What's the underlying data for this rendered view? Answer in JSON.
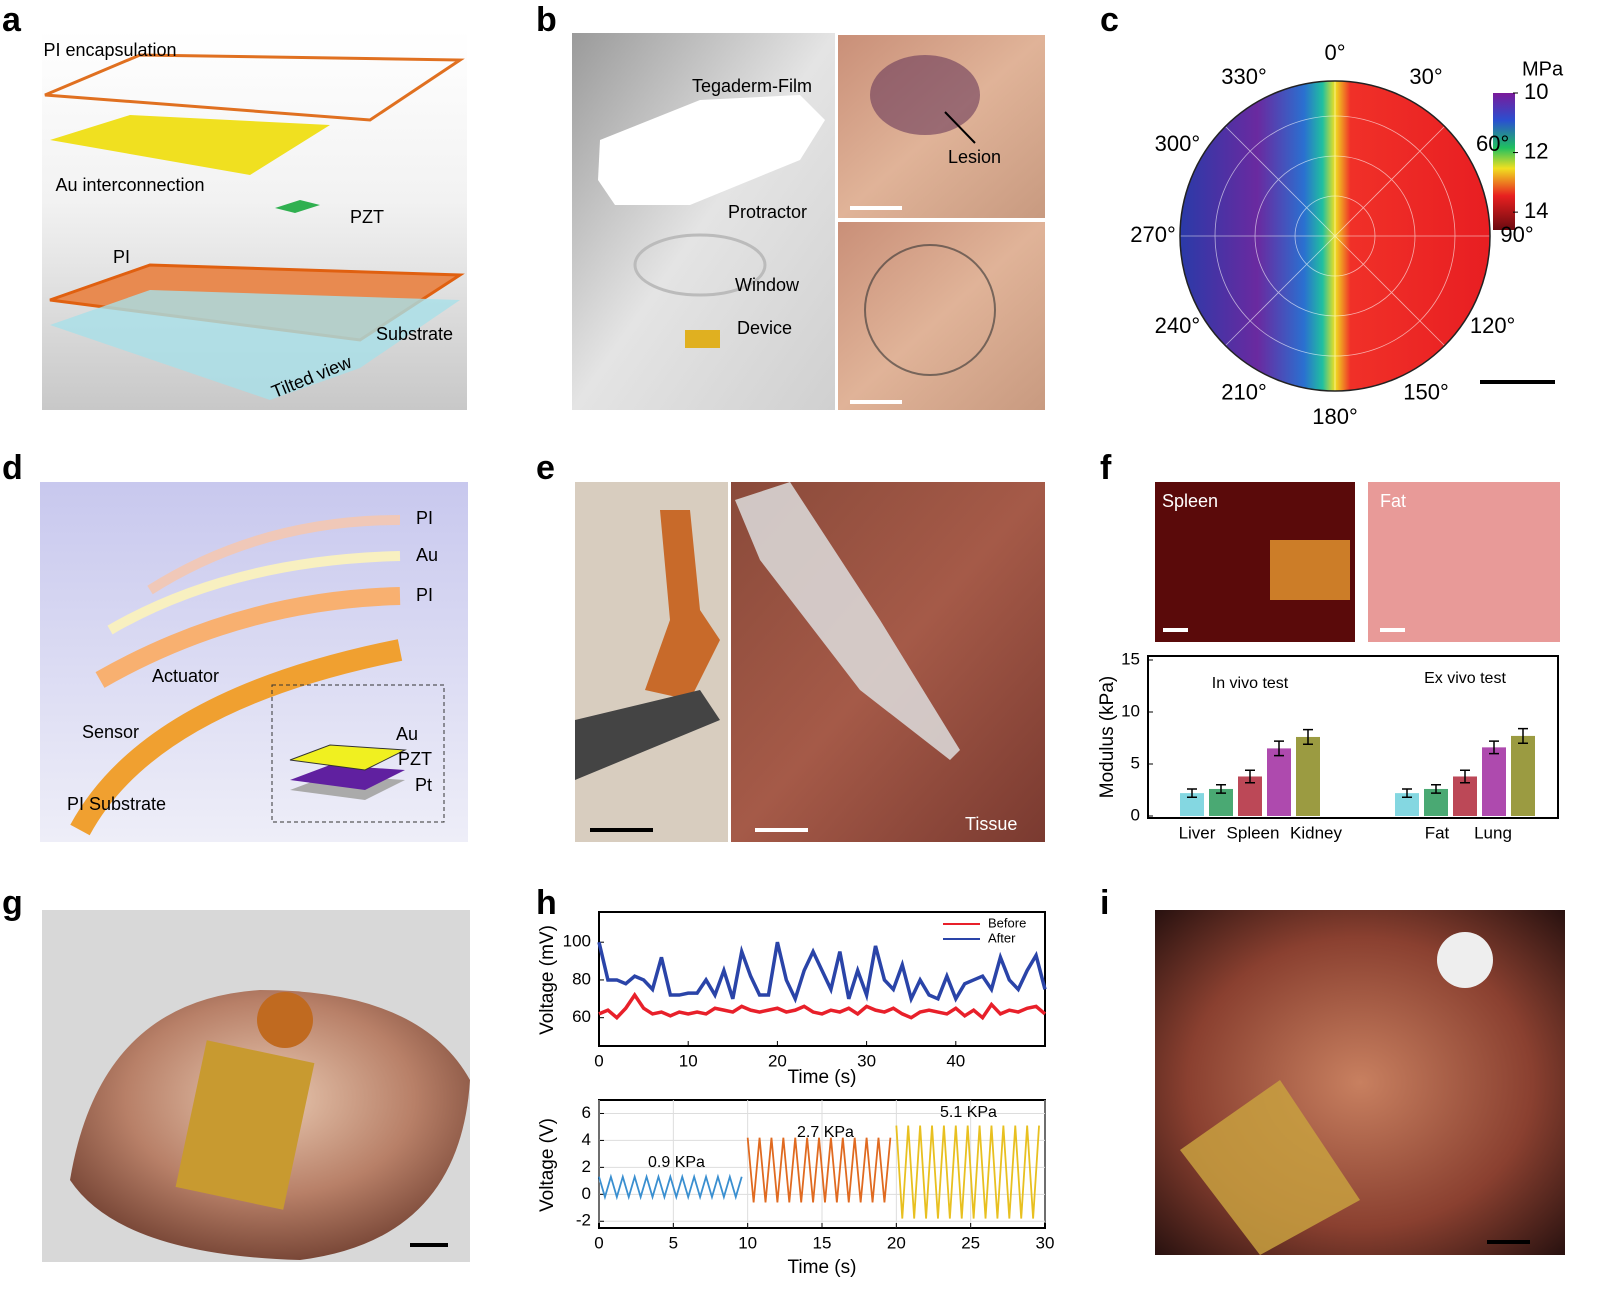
{
  "panels": {
    "letters": [
      "a",
      "b",
      "c",
      "d",
      "e",
      "f",
      "g",
      "h",
      "i"
    ],
    "a": {
      "encapsulation": "PI encapsulation",
      "interconnection": "Au interconnection",
      "pzt": "PZT",
      "pi": "PI",
      "substrate": "Substrate",
      "view": "Tilted view"
    },
    "b": {
      "film": "Tegaderm-Film",
      "protractor": "Protractor",
      "window": "Window",
      "device": "Device",
      "lesion": "Lesion"
    },
    "c": {
      "angles": [
        "0°",
        "30°",
        "60°",
        "90°",
        "120°",
        "150°",
        "180°",
        "210°",
        "240°",
        "270°",
        "300°",
        "330°"
      ],
      "colorbar": {
        "title": "MPa",
        "ticks": [
          10,
          12,
          14
        ],
        "lim": [
          10,
          14.6
        ]
      }
    },
    "d": {
      "layers": [
        "PI",
        "Au",
        "PI"
      ],
      "actuator": "Actuator",
      "sensor": "Sensor",
      "substrate": "PI Substrate",
      "stack": [
        "Au",
        "PZT",
        "Pt"
      ]
    },
    "e": {
      "tissue": "Tissue"
    },
    "f": {
      "photos": [
        "Spleen",
        "Fat"
      ]
    }
  },
  "chart_data": [
    {
      "type": "bar",
      "categories": [
        "In vivo test",
        "Ex vivo test"
      ],
      "x_labels": [
        "Liver",
        "Spleen",
        "Kidney",
        "Fat",
        "Lung"
      ],
      "y_label": "Modulus (kPa)",
      "ylim": [
        0,
        15
      ],
      "yticks": [
        0,
        5,
        10,
        15
      ],
      "series": [
        {
          "color": "#6fd0dc",
          "values": [
            2.2,
            2.2
          ],
          "errors": [
            0.4,
            0.4
          ]
        },
        {
          "color": "#2a9a5a",
          "values": [
            2.6,
            2.6
          ],
          "errors": [
            0.4,
            0.4
          ]
        },
        {
          "color": "#b0283a",
          "values": [
            3.8,
            3.8
          ],
          "errors": [
            0.6,
            0.6
          ]
        },
        {
          "color": "#a02aa0",
          "values": [
            6.5,
            6.6
          ],
          "errors": [
            0.7,
            0.6
          ]
        },
        {
          "color": "#8a8a20",
          "values": [
            7.6,
            7.7
          ],
          "errors": [
            0.7,
            0.7
          ]
        }
      ]
    },
    {
      "type": "line",
      "x_label": "Time (s)",
      "y_label": "Voltage (mV)",
      "xlim": [
        0,
        50
      ],
      "xticks": [
        0,
        10,
        20,
        30,
        40
      ],
      "ylim": [
        45,
        116
      ],
      "yticks": [
        60,
        80,
        100
      ],
      "grid": false,
      "x": [
        0,
        1,
        2,
        3,
        4,
        5,
        6,
        7,
        8,
        9,
        10,
        11,
        12,
        13,
        14,
        15,
        16,
        17,
        18,
        19,
        20,
        21,
        22,
        23,
        24,
        25,
        26,
        27,
        28,
        29,
        30,
        31,
        32,
        33,
        34,
        35,
        36,
        37,
        38,
        39,
        40,
        41,
        42,
        43,
        44,
        45,
        46,
        47,
        48,
        49,
        50
      ],
      "series": [
        {
          "name": "Before",
          "color": "#e8202a",
          "values": [
            62,
            64,
            60,
            65,
            72,
            65,
            62,
            63,
            61,
            63,
            62,
            63,
            62,
            65,
            64,
            63,
            66,
            64,
            63,
            64,
            65,
            63,
            64,
            66,
            63,
            62,
            64,
            63,
            65,
            62,
            66,
            64,
            63,
            65,
            62,
            60,
            63,
            64,
            63,
            62,
            65,
            61,
            64,
            60,
            67,
            62,
            64,
            63,
            65,
            66,
            62
          ]
        },
        {
          "name": "After",
          "color": "#2a44a8",
          "values": [
            100,
            80,
            80,
            78,
            82,
            80,
            75,
            92,
            72,
            72,
            73,
            73,
            80,
            72,
            85,
            70,
            95,
            82,
            72,
            72,
            100,
            80,
            70,
            85,
            95,
            85,
            75,
            95,
            70,
            85,
            72,
            98,
            80,
            75,
            88,
            70,
            80,
            72,
            70,
            82,
            70,
            78,
            80,
            82,
            75,
            92,
            80,
            75,
            85,
            93,
            75
          ]
        }
      ]
    },
    {
      "type": "line",
      "x_label": "Time (s)",
      "y_label": "Voltage (V)",
      "xlim": [
        0,
        30
      ],
      "xticks": [
        0,
        5,
        10,
        15,
        20,
        25,
        30
      ],
      "ylim": [
        -2.5,
        7
      ],
      "yticks": [
        -2,
        0,
        2,
        4,
        6
      ],
      "grid": true,
      "annotations": [
        "0.9 KPa",
        "2.7 KPa",
        "5.1 KPa"
      ],
      "series": [
        {
          "color": "#3a8fd0",
          "x": [
            0,
            0.4,
            0.8,
            1.2,
            1.6,
            2,
            2.4,
            2.8,
            3.2,
            3.6,
            4,
            4.4,
            4.8,
            5.2,
            5.6,
            6,
            6.4,
            6.8,
            7.2,
            7.6,
            8,
            8.4,
            8.8,
            9.2,
            9.6
          ],
          "values": [
            1.3,
            -0.2,
            1.3,
            -0.2,
            1.3,
            -0.2,
            1.3,
            -0.2,
            1.3,
            -0.2,
            1.3,
            -0.2,
            1.3,
            -0.2,
            1.3,
            -0.2,
            1.3,
            -0.2,
            1.3,
            -0.2,
            1.3,
            -0.2,
            1.3,
            -0.2,
            1.3
          ]
        },
        {
          "color": "#e06a20",
          "x": [
            10,
            10.4,
            10.8,
            11.2,
            11.6,
            12,
            12.4,
            12.8,
            13.2,
            13.6,
            14,
            14.4,
            14.8,
            15.2,
            15.6,
            16,
            16.4,
            16.8,
            17.2,
            17.6,
            18,
            18.4,
            18.8,
            19.2,
            19.6
          ],
          "values": [
            4.2,
            -0.6,
            4.2,
            -0.6,
            4.2,
            -0.6,
            4.2,
            -0.6,
            4.2,
            -0.6,
            4.2,
            -0.6,
            4.2,
            -0.6,
            4.2,
            -0.6,
            4.2,
            -0.6,
            4.2,
            -0.6,
            4.2,
            -0.6,
            4.2,
            -0.6,
            4.2
          ]
        },
        {
          "color": "#e8c020",
          "x": [
            20,
            20.4,
            20.8,
            21.2,
            21.6,
            22,
            22.4,
            22.8,
            23.2,
            23.6,
            24,
            24.4,
            24.8,
            25.2,
            25.6,
            26,
            26.4,
            26.8,
            27.2,
            27.6,
            28,
            28.4,
            28.8,
            29.2,
            29.6
          ],
          "values": [
            5.1,
            -1.8,
            5.1,
            -1.8,
            5.1,
            -1.8,
            5.1,
            -1.8,
            5.1,
            -1.8,
            5.1,
            -1.8,
            5.1,
            -1.8,
            5.1,
            -1.8,
            5.1,
            -1.8,
            5.1,
            -1.8,
            5.1,
            -1.8,
            5.1,
            -1.8,
            5.1
          ]
        }
      ]
    }
  ]
}
